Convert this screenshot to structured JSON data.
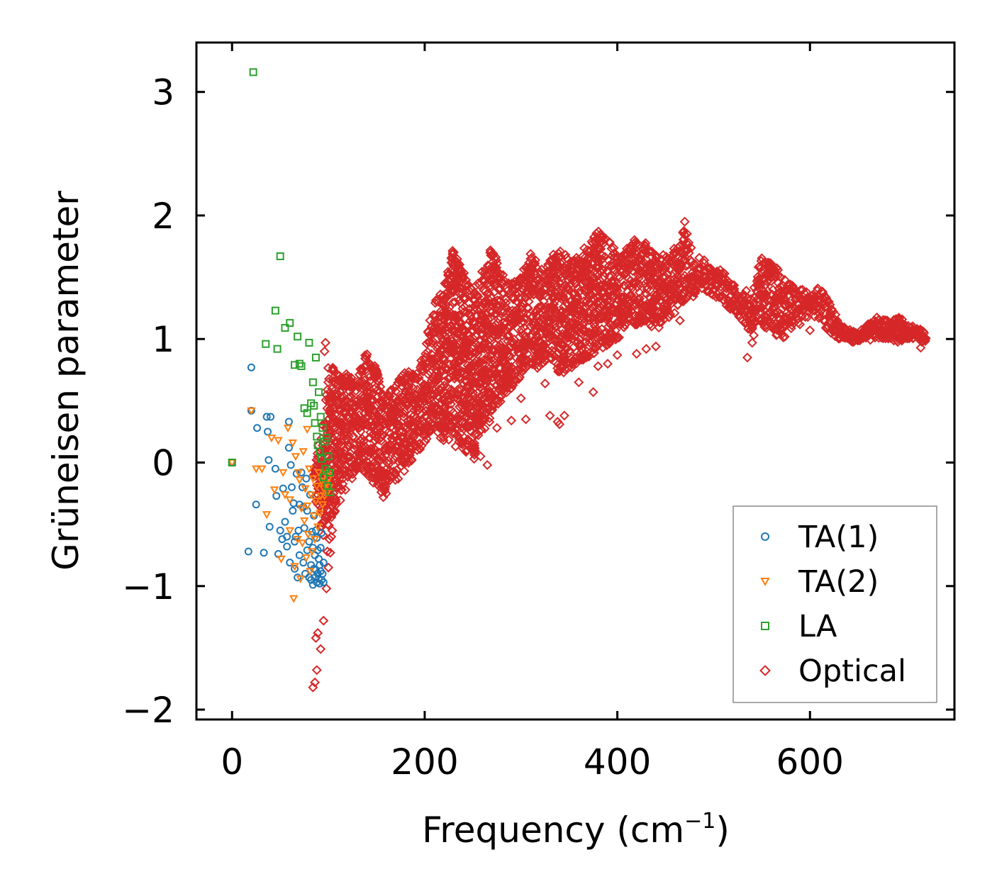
{
  "chart_data": {
    "type": "scatter",
    "xlabel": "Frequency (cm",
    "xlabel_sup": "−1",
    "xlabel_end": ")",
    "ylabel": "Grüneisen parameter",
    "xlim": [
      -37,
      750
    ],
    "ylim": [
      -2.08,
      3.4
    ],
    "xticks": [
      0,
      200,
      400,
      600
    ],
    "xtick_labels": [
      "0",
      "200",
      "400",
      "600"
    ],
    "yticks": [
      -2,
      -1,
      0,
      1,
      2,
      3
    ],
    "ytick_labels": [
      "−2",
      "−1",
      "0",
      "1",
      "2",
      "3"
    ],
    "legend_position": "lower-right",
    "series": [
      {
        "name": "TA(1)",
        "marker": "circle",
        "color": "#1f77b4",
        "x": [
          0,
          20,
          20,
          17,
          25,
          26,
          33,
          36,
          37,
          39,
          38,
          40,
          45,
          46,
          48,
          50,
          52,
          53,
          55,
          57,
          57,
          59,
          59,
          60,
          61,
          62,
          63,
          64,
          65,
          65,
          66,
          67,
          68,
          69,
          70,
          70,
          72,
          73,
          74,
          74,
          75,
          76,
          77,
          78,
          78,
          80,
          80,
          81,
          82,
          82,
          83,
          84,
          84,
          85,
          85,
          86,
          86,
          87,
          87,
          88,
          88,
          89,
          89,
          90,
          90,
          91,
          91,
          92,
          92,
          93,
          93,
          94,
          95,
          95
        ],
        "y": [
          0.0,
          0.77,
          0.42,
          -0.72,
          -0.34,
          0.28,
          -0.73,
          0.37,
          0.25,
          -0.52,
          0.02,
          0.37,
          -0.05,
          -0.27,
          -0.74,
          -0.55,
          -0.62,
          -0.21,
          -0.48,
          -0.68,
          -0.6,
          0.33,
          0.12,
          -0.81,
          -0.02,
          -0.2,
          -0.39,
          -0.33,
          -0.64,
          -0.86,
          -0.6,
          -0.09,
          -0.93,
          -0.55,
          -0.34,
          -0.75,
          -0.08,
          -0.2,
          -0.81,
          -0.36,
          -0.53,
          -0.9,
          -0.13,
          -0.39,
          -0.71,
          -0.93,
          -0.64,
          -0.26,
          -0.95,
          -0.83,
          -0.56,
          -0.99,
          -0.69,
          -0.43,
          -0.86,
          -0.75,
          -0.93,
          -0.55,
          -0.87,
          -0.97,
          -0.61,
          -0.71,
          -0.9,
          -0.78,
          -0.94,
          -0.83,
          -0.98,
          -0.69,
          -0.88,
          -0.95,
          -0.57,
          -0.9,
          -0.81,
          -0.97
        ]
      },
      {
        "name": "TA(2)",
        "marker": "triangle-down",
        "color": "#ff7f0e",
        "x": [
          0,
          20,
          25,
          31,
          36,
          41,
          44,
          48,
          51,
          53,
          55,
          58,
          60,
          60,
          63,
          64,
          65,
          66,
          68,
          69,
          70,
          71,
          72,
          73,
          74,
          75,
          76,
          77,
          78,
          78,
          79,
          80,
          81,
          82,
          83,
          84,
          85,
          86,
          87,
          88,
          89,
          90,
          91,
          92,
          93,
          94,
          95,
          96,
          97,
          98,
          99,
          100,
          101,
          102
        ],
        "y": [
          0.0,
          0.42,
          -0.05,
          -0.05,
          -0.42,
          0.2,
          -0.22,
          0.18,
          -0.78,
          -0.08,
          -0.26,
          0.28,
          -0.55,
          -0.3,
          0.16,
          -1.1,
          -0.84,
          0.05,
          -0.62,
          -0.08,
          -0.14,
          -0.94,
          -0.37,
          -0.65,
          0.09,
          -0.47,
          -0.21,
          -0.77,
          -0.35,
          0.27,
          -0.58,
          -0.05,
          -0.88,
          -0.26,
          -0.72,
          -0.13,
          -0.43,
          -0.62,
          -0.31,
          -0.19,
          -0.52,
          -0.08,
          -0.41,
          -0.27,
          -0.15,
          -0.34,
          -0.21,
          -0.27,
          -0.09,
          -0.17,
          -0.24,
          -0.13,
          -0.2,
          -0.08
        ]
      },
      {
        "name": "LA",
        "marker": "square",
        "color": "#2ca02c",
        "x": [
          0,
          22,
          50,
          35,
          45,
          47,
          55,
          60,
          65,
          68,
          70,
          72,
          75,
          78,
          80,
          82,
          84,
          85,
          86,
          87,
          88,
          89,
          90,
          91,
          92,
          93,
          94,
          95,
          96,
          97,
          98,
          99,
          100,
          101,
          102
        ],
        "y": [
          0.0,
          3.16,
          1.67,
          0.96,
          1.23,
          0.92,
          1.09,
          1.13,
          0.79,
          1.02,
          0.8,
          0.78,
          0.44,
          0.4,
          0.97,
          0.48,
          0.65,
          0.46,
          0.32,
          0.85,
          0.21,
          0.14,
          0.57,
          0.09,
          0.37,
          0.03,
          0.28,
          -0.12,
          0.17,
          -0.05,
          0.2,
          -0.19,
          0.05,
          -0.08,
          -0.24
        ]
      },
      {
        "name": "Optical",
        "marker": "diamond",
        "color": "#d62728",
        "envelope_x": [
          85,
          95,
          100,
          110,
          120,
          130,
          140,
          150,
          160,
          170,
          180,
          190,
          200,
          210,
          220,
          230,
          240,
          250,
          260,
          270,
          280,
          290,
          300,
          310,
          320,
          330,
          340,
          350,
          360,
          370,
          380,
          390,
          400,
          410,
          420,
          430,
          440,
          450,
          460,
          470,
          480,
          490,
          500,
          510,
          520,
          530,
          540,
          550,
          560,
          570,
          580,
          590,
          600,
          610,
          620,
          630,
          640,
          650,
          660,
          670,
          680,
          690,
          700,
          710,
          720
        ],
        "envelope_upper": [
          0.0,
          0.35,
          0.8,
          0.75,
          0.72,
          0.7,
          0.92,
          0.78,
          0.55,
          0.62,
          0.78,
          0.72,
          0.92,
          1.32,
          1.42,
          1.75,
          1.55,
          1.42,
          1.55,
          1.75,
          1.55,
          1.45,
          1.52,
          1.7,
          1.58,
          1.65,
          1.75,
          1.65,
          1.68,
          1.8,
          1.88,
          1.82,
          1.7,
          1.75,
          1.82,
          1.78,
          1.72,
          1.68,
          1.75,
          1.9,
          1.72,
          1.65,
          1.55,
          1.58,
          1.45,
          1.4,
          1.38,
          1.68,
          1.62,
          1.55,
          1.45,
          1.42,
          1.38,
          1.42,
          1.3,
          1.15,
          1.08,
          1.05,
          1.12,
          1.18,
          1.15,
          1.18,
          1.15,
          1.1,
          1.05
        ],
        "envelope_lower": [
          -0.3,
          -0.6,
          -0.55,
          -0.35,
          -0.2,
          -0.05,
          -0.1,
          -0.2,
          -0.25,
          -0.15,
          -0.1,
          0.05,
          0.15,
          0.3,
          0.15,
          0.2,
          0.1,
          0.0,
          0.25,
          0.35,
          0.5,
          0.6,
          0.7,
          0.8,
          0.75,
          0.85,
          0.7,
          0.75,
          0.8,
          0.85,
          0.9,
          0.95,
          1.0,
          1.05,
          1.1,
          1.15,
          1.05,
          1.15,
          1.2,
          1.3,
          1.35,
          1.4,
          1.35,
          1.3,
          1.2,
          1.15,
          1.0,
          1.1,
          1.05,
          1.0,
          1.05,
          1.1,
          1.2,
          1.15,
          1.05,
          1.0,
          0.98,
          0.97,
          0.98,
          1.0,
          1.0,
          0.97,
          1.0,
          1.0,
          0.95
        ],
        "outlier_x": [
          84,
          86,
          88,
          87,
          89,
          92,
          95,
          98,
          99,
          100,
          101,
          102,
          103,
          104,
          97,
          96,
          155,
          157,
          160,
          232,
          258,
          265,
          275,
          290,
          300,
          305,
          325,
          330,
          338,
          340,
          345,
          357,
          360,
          375,
          380,
          390,
          400,
          420,
          430,
          440,
          455,
          465,
          470,
          535,
          540,
          550,
          555,
          600,
          622,
          715
        ],
        "outlier_y": [
          -1.82,
          -1.78,
          -1.68,
          -1.42,
          -1.38,
          -1.51,
          -1.28,
          -1.02,
          -0.72,
          -0.85,
          -0.62,
          -0.73,
          -0.6,
          -0.55,
          0.97,
          0.9,
          -0.24,
          -0.28,
          -0.25,
          0.13,
          0.05,
          -0.02,
          0.28,
          0.34,
          0.52,
          0.35,
          0.64,
          0.38,
          0.33,
          0.31,
          0.38,
          0.85,
          0.65,
          0.57,
          0.78,
          0.8,
          0.87,
          0.88,
          0.92,
          0.94,
          1.2,
          1.15,
          1.95,
          0.85,
          0.97,
          1.25,
          1.18,
          1.07,
          1.05,
          0.93
        ]
      }
    ]
  }
}
